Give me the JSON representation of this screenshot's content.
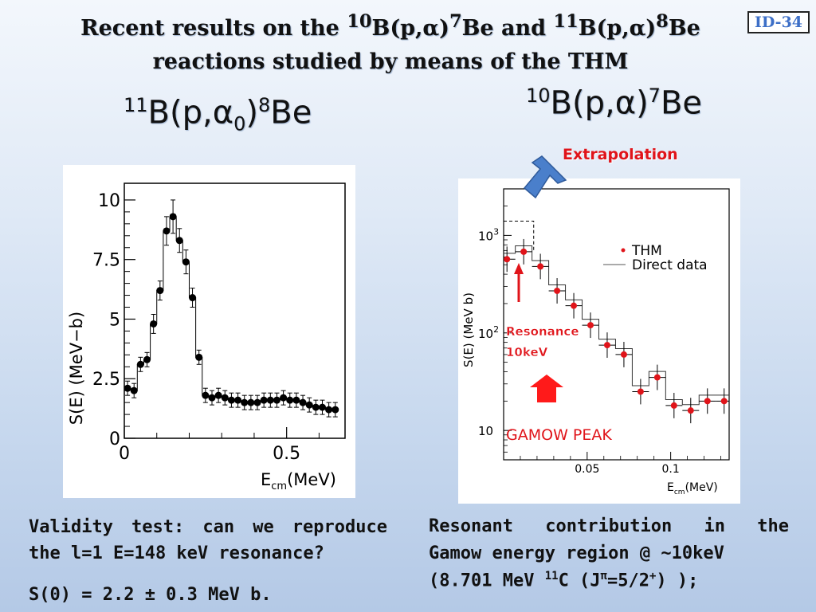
{
  "title": {
    "line1_a": "Recent results on the ",
    "line1_sup1": "10",
    "line1_b": "B(p,α)",
    "line1_sup2": "7",
    "line1_c": "Be and ",
    "line1_sup3": "11",
    "line1_d": "B(p,α)",
    "line1_sup4": "8",
    "line1_e": "Be",
    "line2": "reactions studied by means of the THM"
  },
  "badge": "ID-34",
  "left_reaction": {
    "sup_a": "11",
    "mid": "B(p,α",
    "sub": "0",
    "close": ")",
    "sup_b": "8",
    "end": "Be"
  },
  "right_reaction": {
    "sup_a": "10",
    "mid": "B(p,α)",
    "sup_b": "7",
    "end": "Be"
  },
  "extrapolation_label": "Extrapolation",
  "colors": {
    "arrow_blue": "#4a7fcb",
    "red": "#e0141a",
    "text_dark": "#111111"
  },
  "left_caption": {
    "line1": "Validity test: can we reproduce",
    "line2": "the l=1 E=148 keV resonance?",
    "line3": "S(0) = 2.2 ± 0.3 MeV b."
  },
  "right_caption": {
    "line1": "Resonant contribution in the",
    "line2": "Gamow energy region @ ~10keV",
    "line3_a": "(8.701 MeV ",
    "line3_sup": "11",
    "line3_b": "C (J",
    "line3_sup2": "π",
    "line3_c": "=5/2",
    "line3_sup3": "+",
    "line3_d": ") );"
  },
  "chart_data": [
    {
      "type": "scatter",
      "ylabel": "S(E) (MeV−b)",
      "xlabel_main": "E",
      "xlabel_sub": "cm",
      "xlabel_unit": "(MeV)",
      "xlim": [
        0,
        0.68
      ],
      "ylim": [
        0,
        10.7
      ],
      "x_ticks": [
        0,
        0.5
      ],
      "x_tick_labels": [
        "0",
        "0.5"
      ],
      "y_ticks": [
        0,
        2.5,
        5,
        7.5,
        10
      ],
      "y_tick_labels": [
        "0",
        "2.5",
        "5",
        "7.5",
        "10"
      ],
      "series": [
        {
          "x": [
            0.01,
            0.03,
            0.05,
            0.07,
            0.09,
            0.11,
            0.13,
            0.15,
            0.17,
            0.19,
            0.21,
            0.23,
            0.25,
            0.27,
            0.29,
            0.31,
            0.33,
            0.35,
            0.37,
            0.39,
            0.41,
            0.43,
            0.45,
            0.47,
            0.49,
            0.51,
            0.53,
            0.55,
            0.57,
            0.59,
            0.61,
            0.63,
            0.65
          ],
          "y": [
            2.1,
            2.0,
            3.1,
            3.3,
            4.8,
            6.2,
            8.7,
            9.3,
            8.3,
            7.4,
            5.9,
            3.4,
            1.8,
            1.7,
            1.8,
            1.7,
            1.6,
            1.6,
            1.5,
            1.5,
            1.5,
            1.6,
            1.6,
            1.6,
            1.7,
            1.6,
            1.6,
            1.5,
            1.4,
            1.3,
            1.3,
            1.2,
            1.2
          ],
          "err": [
            0.3,
            0.3,
            0.3,
            0.3,
            0.4,
            0.4,
            0.6,
            0.7,
            0.5,
            0.5,
            0.4,
            0.3,
            0.3,
            0.3,
            0.3,
            0.3,
            0.3,
            0.3,
            0.3,
            0.3,
            0.3,
            0.3,
            0.3,
            0.3,
            0.3,
            0.3,
            0.3,
            0.3,
            0.3,
            0.3,
            0.3,
            0.3,
            0.3
          ]
        }
      ]
    },
    {
      "type": "scatter",
      "ylabel": "S(E) (MeV b)",
      "xlabel_main": "E",
      "xlabel_sub": "cm",
      "xlabel_unit": "(MeV)",
      "y_scale": "log",
      "xlim": [
        0,
        0.135
      ],
      "ylim": [
        5,
        3000
      ],
      "x_tick_labels": [
        "0.05",
        "0.1"
      ],
      "y_tick_labels": [
        {
          "base": "10",
          "exp": ""
        },
        {
          "base": "10",
          "exp": "2"
        },
        {
          "base": "10",
          "exp": "3"
        }
      ],
      "legend": [
        "THM",
        "Direct data"
      ],
      "legend_position": "top-right",
      "annotation_resonance": [
        "Resonance",
        "10keV"
      ],
      "annotation_gamow": "GAMOW PEAK",
      "series": [
        {
          "name": "THM",
          "x": [
            0.002,
            0.012,
            0.022,
            0.032,
            0.042,
            0.052,
            0.062,
            0.072,
            0.082,
            0.092,
            0.102,
            0.112,
            0.122,
            0.132
          ],
          "y": [
            570,
            680,
            480,
            270,
            190,
            120,
            75,
            60,
            25,
            35,
            18,
            16,
            20,
            20
          ],
          "xerr": [
            0.005,
            0.005,
            0.005,
            0.005,
            0.005,
            0.005,
            0.005,
            0.005,
            0.005,
            0.005,
            0.005,
            0.005,
            0.005,
            0.005
          ]
        }
      ]
    }
  ]
}
